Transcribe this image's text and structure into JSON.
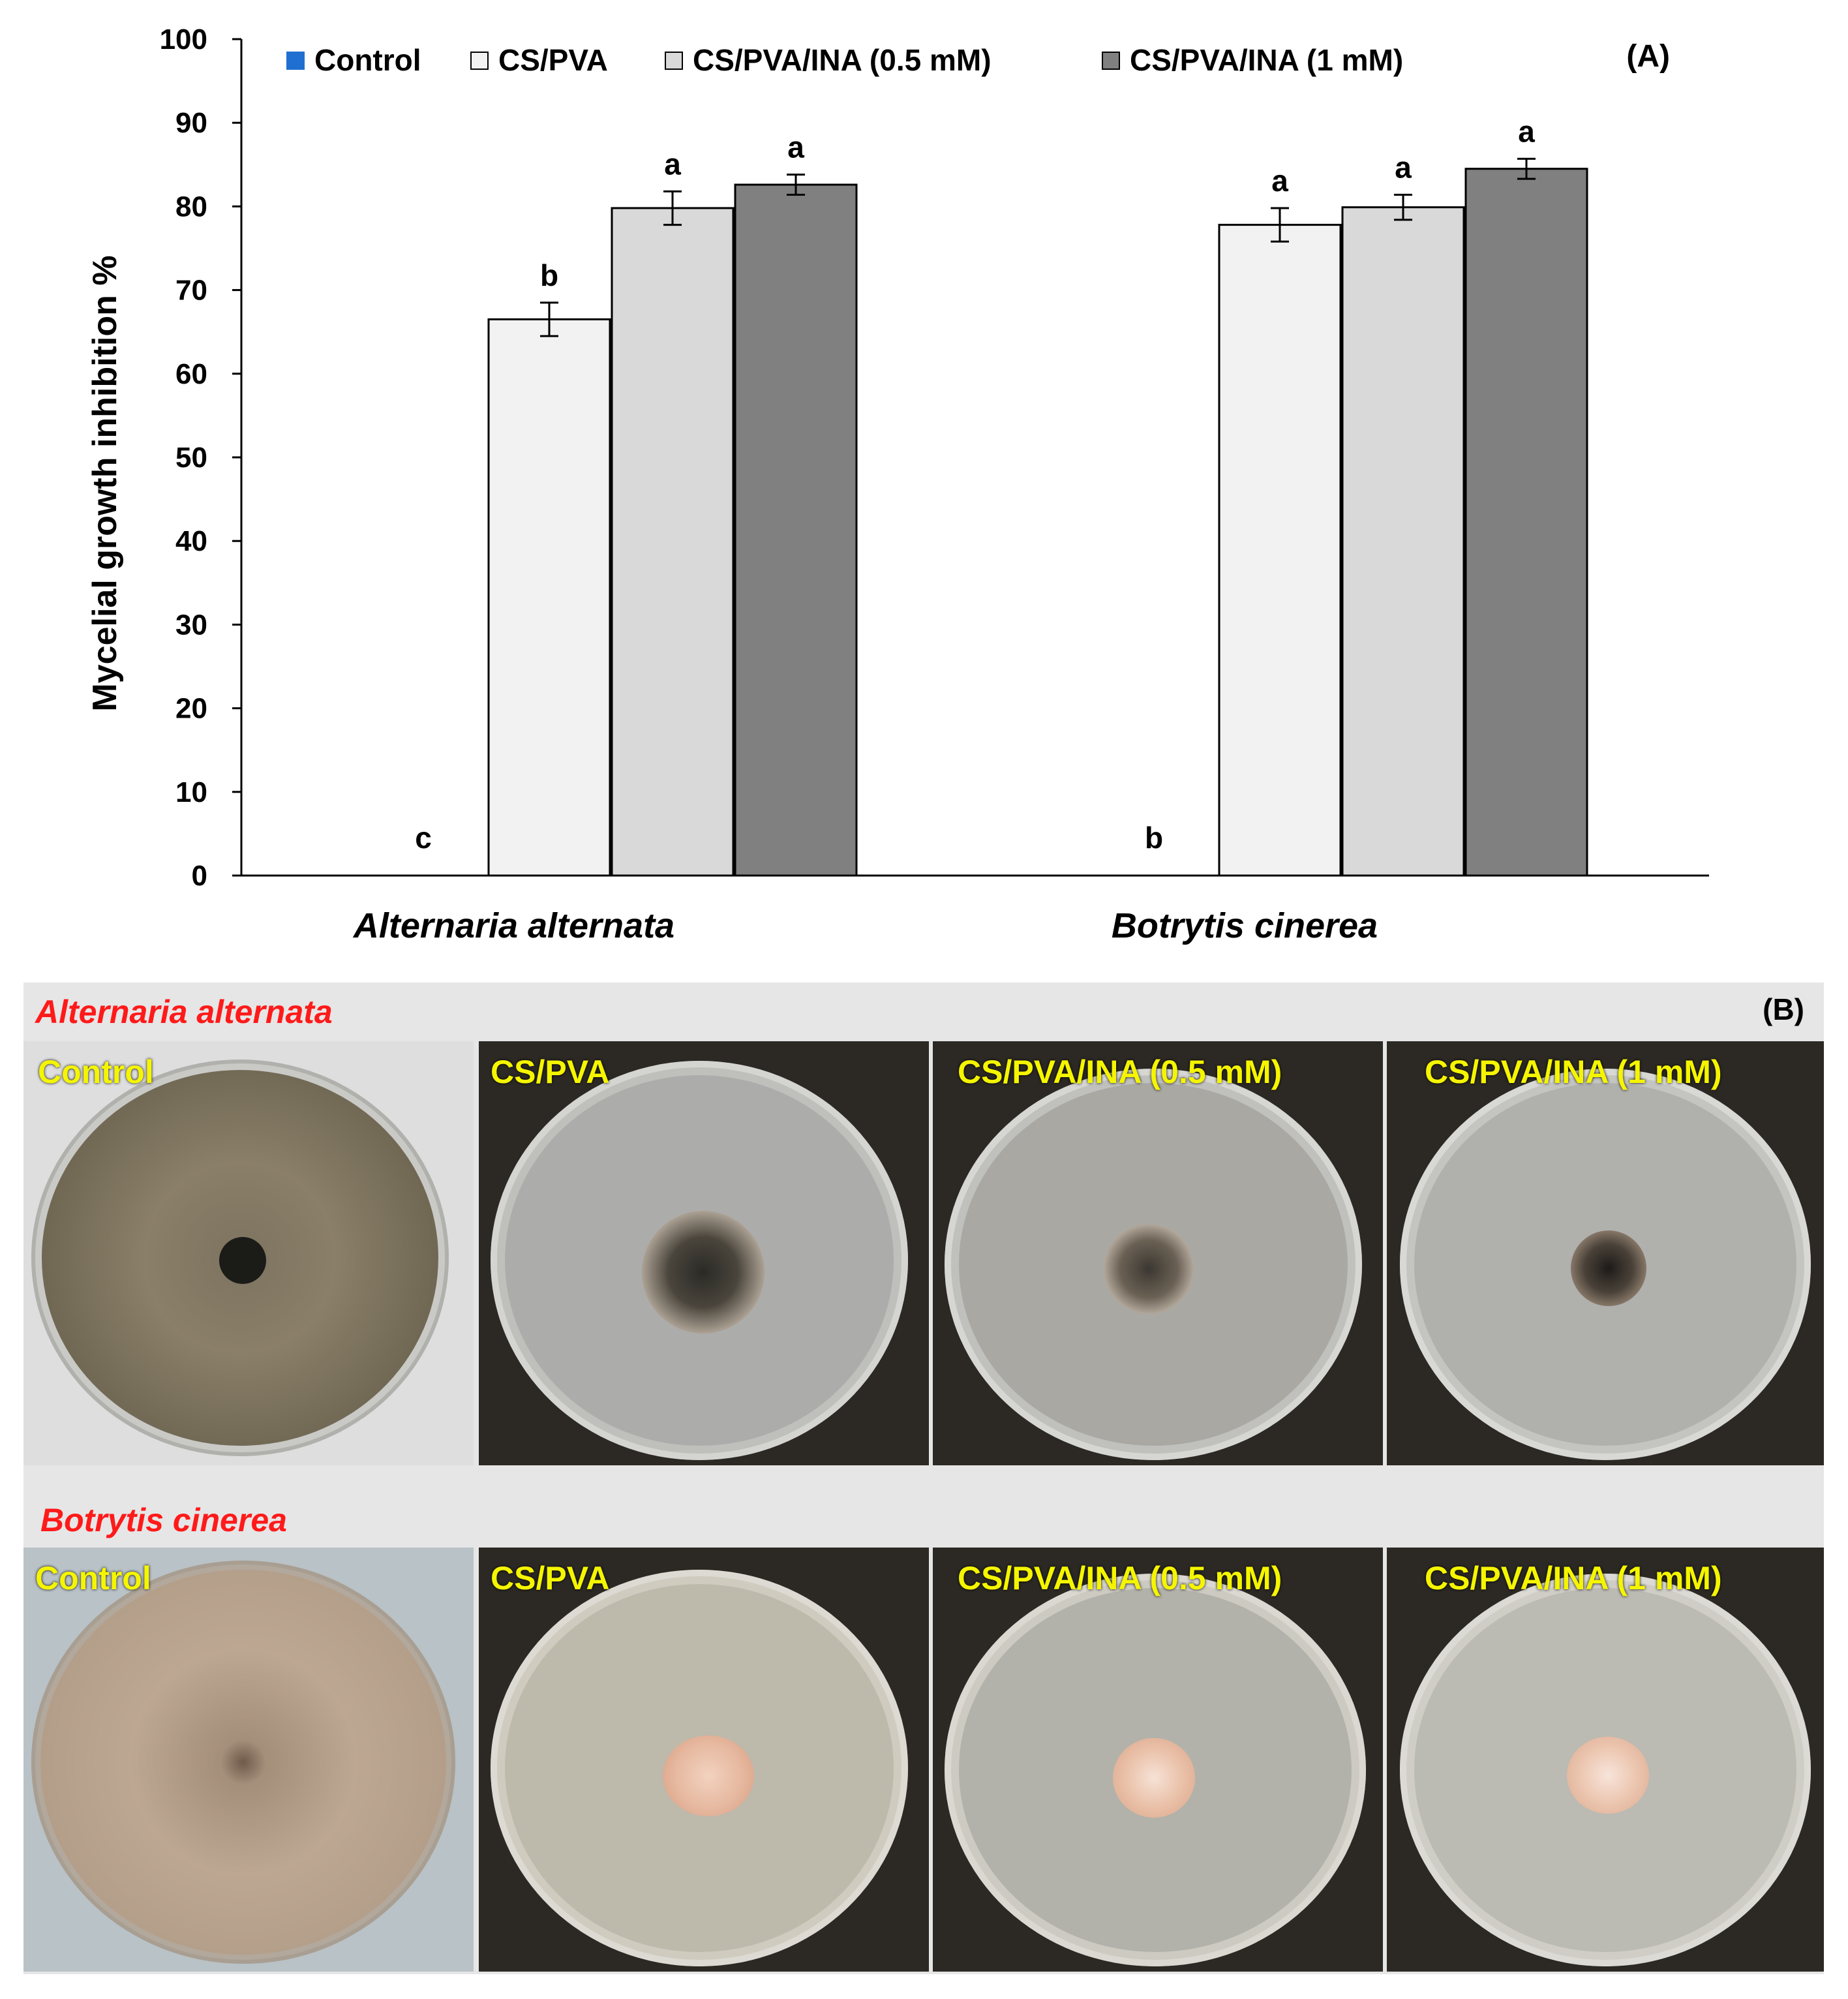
{
  "chart_data": {
    "type": "bar",
    "panel_label": "(A)",
    "ylabel": "Mycelial growth inhibition  %",
    "xlabel": "",
    "ylim": [
      0,
      100
    ],
    "yticks": [
      "0",
      "10",
      "20",
      "30",
      "40",
      "50",
      "60",
      "70",
      "80",
      "90",
      "100"
    ],
    "grid": false,
    "legend_position": "top",
    "categories": [
      "Alternaria alternata",
      "Botrytis cinerea"
    ],
    "series": [
      {
        "name": "Control",
        "color": "#1f6fd1",
        "values": [
          0,
          0
        ],
        "errors": [
          0,
          0
        ],
        "letters": [
          "c",
          "b"
        ]
      },
      {
        "name": "CS/PVA",
        "color": "#f2f2f2",
        "values": [
          66.5,
          77.8
        ],
        "errors": [
          2.0,
          2.0
        ],
        "letters": [
          "b",
          "a"
        ]
      },
      {
        "name": "CS/PVA/INA (0.5 mM)",
        "color": "#d9d9d9",
        "values": [
          79.8,
          79.9
        ],
        "errors": [
          2.0,
          1.5
        ],
        "letters": [
          "a",
          "a"
        ]
      },
      {
        "name": "CS/PVA/INA (1 mM)",
        "color": "#808080",
        "values": [
          82.6,
          84.5
        ],
        "errors": [
          1.2,
          1.2
        ],
        "letters": [
          "a",
          "a"
        ]
      }
    ]
  },
  "panel_b": {
    "label": "(B)",
    "rows": [
      {
        "title": "Alternaria alternata",
        "photos": [
          {
            "label": "Control",
            "style": "alt-control"
          },
          {
            "label": "CS/PVA",
            "style": "alt-treated"
          },
          {
            "label": "CS/PVA/INA (0.5 mM)",
            "style": "alt-treated"
          },
          {
            "label": "CS/PVA/INA (1 mM)",
            "style": "alt-treated"
          }
        ]
      },
      {
        "title": "Botrytis cinerea",
        "photos": [
          {
            "label": "Control",
            "style": "bot-control"
          },
          {
            "label": "CS/PVA",
            "style": "bot-treated"
          },
          {
            "label": "CS/PVA/INA (0.5 mM)",
            "style": "bot-treated"
          },
          {
            "label": "CS/PVA/INA (1 mM)",
            "style": "bot-treated"
          }
        ]
      }
    ]
  }
}
